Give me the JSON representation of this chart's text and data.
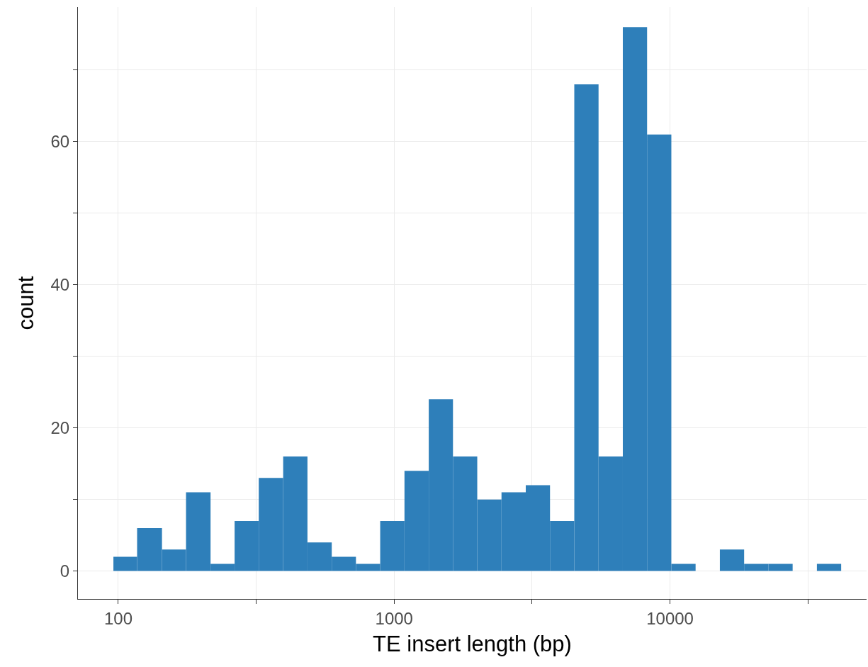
{
  "chart_data": {
    "type": "histogram",
    "xlabel": "TE insert length (bp)",
    "ylabel": "count",
    "color": "#2e7fba",
    "bins": [
      96,
      117,
      144,
      176,
      216,
      264,
      323,
      396,
      485,
      594,
      727,
      890,
      1090,
      1335,
      1634,
      2001,
      2450,
      3000,
      3673,
      4498,
      5508,
      6745,
      8259,
      10113,
      12382,
      15163,
      18566,
      22735,
      27836,
      34086,
      41735
    ],
    "values": [
      2,
      6,
      3,
      11,
      1,
      7,
      13,
      16,
      4,
      2,
      1,
      7,
      14,
      24,
      16,
      10,
      11,
      12,
      7,
      68,
      16,
      76,
      61,
      1,
      0,
      3,
      1,
      1,
      0,
      1
    ],
    "log": "x",
    "xlim": [
      71.4,
      51600
    ],
    "xticks": [
      100,
      {
        "value": 316,
        "label": null
      },
      1000,
      {
        "value": 3162,
        "label": null
      },
      10000,
      {
        "value": 31623,
        "label": null
      }
    ],
    "ylim": [
      -3.9,
      78.8
    ],
    "yticks": [
      0,
      {
        "value": 10,
        "label": null
      },
      20,
      {
        "value": 30,
        "label": null
      },
      40,
      {
        "value": 50,
        "label": null
      },
      60,
      {
        "value": 70,
        "label": null
      }
    ],
    "grid": true
  }
}
